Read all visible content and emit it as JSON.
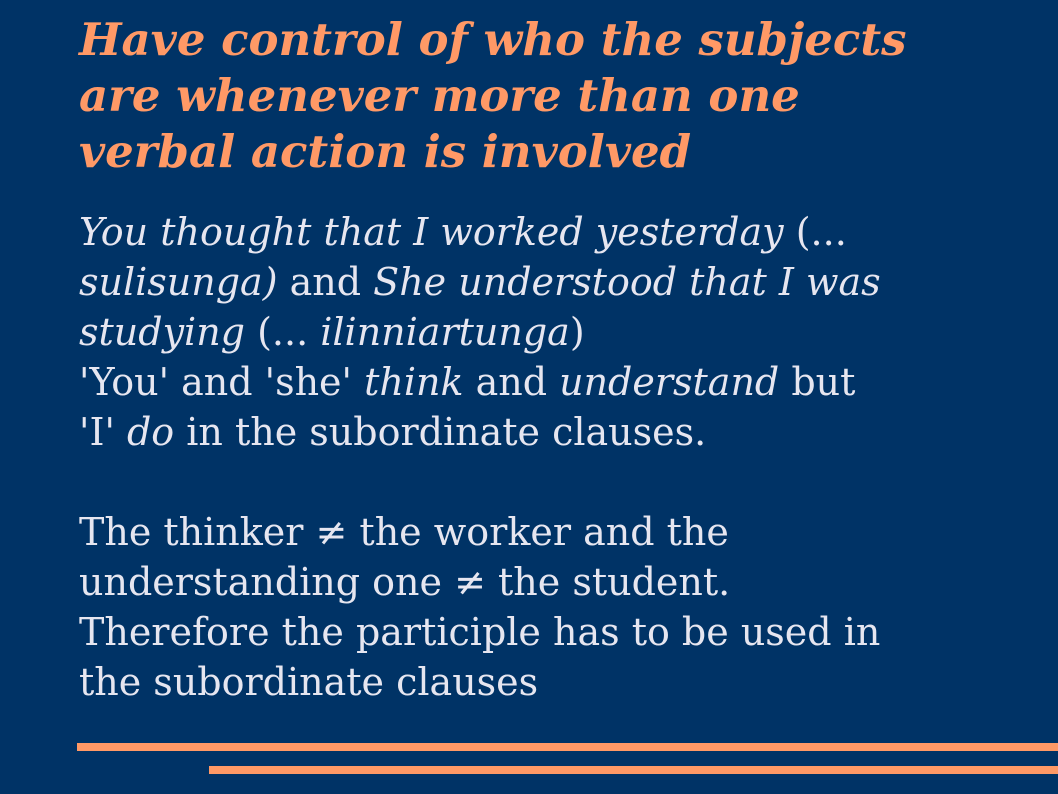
{
  "title": {
    "line1": "Have control of who the subjects",
    "line2": "are whenever more than one",
    "line3": "verbal action is involved"
  },
  "body": {
    "p1_l1_a": "You thought that I worked yesterday",
    "p1_l1_b": " (...",
    "p1_l2_a": "sulisunga)",
    "p1_l2_b": " and ",
    "p1_l2_c": "She understood that I was",
    "p1_l3_a": "studying",
    "p1_l3_b": " (... ",
    "p1_l3_c": "ilinniartunga",
    "p1_l3_d": ")",
    "p2_l1_a": "'You' and 'she' ",
    "p2_l1_b": "think",
    "p2_l1_c": " and ",
    "p2_l1_d": "understand",
    "p2_l1_e": " but",
    "p2_l2_a": "'I' ",
    "p2_l2_b": "do",
    "p2_l2_c": " in the subordinate clauses.",
    "p3_l1": "The thinker  ≠ the worker and the",
    "p3_l2": "understanding one  ≠ the student.",
    "p3_l3": "Therefore the participle has to be used in",
    "p3_l4": "the subordinate clauses"
  },
  "colors": {
    "background": "#003366",
    "accent": "#ff9966",
    "text": "#e6e6f0"
  }
}
